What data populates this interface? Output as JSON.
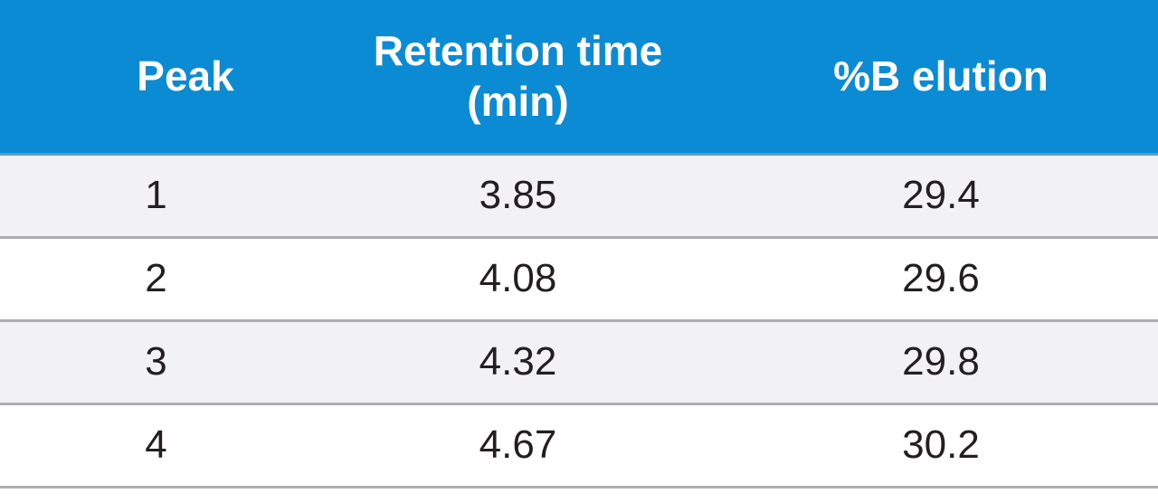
{
  "table": {
    "header": [
      "Peak",
      "Retention time (min)",
      "%B elution"
    ],
    "rows": [
      [
        1,
        3.85,
        29.4
      ],
      [
        2,
        4.08,
        29.6
      ],
      [
        3,
        4.32,
        29.8
      ],
      [
        4,
        4.67,
        30.2
      ]
    ]
  }
}
